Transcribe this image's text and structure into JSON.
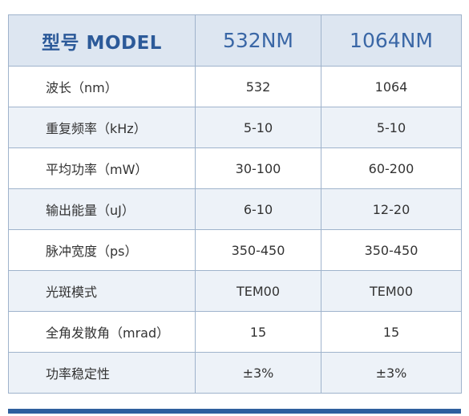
{
  "header": {
    "model_label": "型号 MODEL",
    "columns": [
      "532NM",
      "1064NM"
    ]
  },
  "rows": [
    {
      "param": "波长（nm）",
      "v532": "532",
      "v1064": "1064"
    },
    {
      "param": "重复频率（kHz）",
      "v532": "5-10",
      "v1064": "5-10"
    },
    {
      "param": "平均功率（mW）",
      "v532": "30-100",
      "v1064": "60-200"
    },
    {
      "param": "输出能量（uJ）",
      "v532": "6-10",
      "v1064": "12-20"
    },
    {
      "param": "脉冲宽度（ps）",
      "v532": "350-450",
      "v1064": "350-450"
    },
    {
      "param": "光斑模式",
      "v532": "TEM00",
      "v1064": "TEM00"
    },
    {
      "param": "全角发散角（mrad）",
      "v532": "15",
      "v1064": "15"
    },
    {
      "param": "功率稳定性",
      "v532": "±3%",
      "v1064": "±3%"
    }
  ],
  "colors": {
    "header_bg": "#dde6f1",
    "header_text": "#2f5f9e",
    "stripe_bg": "#edf2f8",
    "border": "#9fb3cc",
    "accent_bar": "#2f5f9e"
  }
}
